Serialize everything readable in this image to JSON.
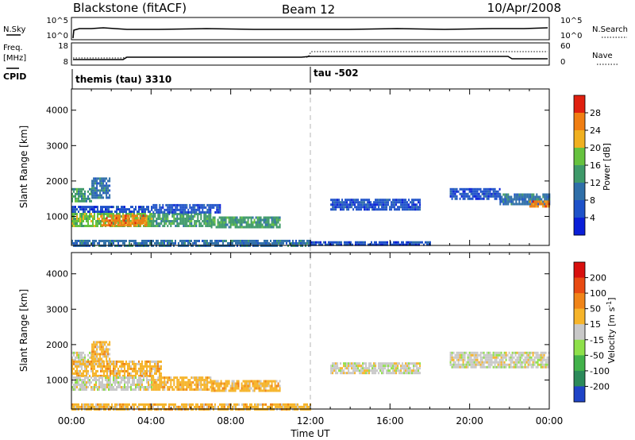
{
  "header": {
    "station": "Blackstone (fitACF)",
    "beam": "Beam 12",
    "date": "10/Apr/2008"
  },
  "panels": {
    "nsky": {
      "label": "N.Sky",
      "left_ticks": [
        "10^5",
        "10^0"
      ],
      "right_ticks": [
        "10^5",
        "10^0"
      ],
      "right_label": "N.Search"
    },
    "freq": {
      "label": "Freq.",
      "unit": "[MHz]",
      "left_ticks": [
        "18",
        "8"
      ],
      "right_ticks": [
        "60",
        "0"
      ],
      "right_label": "Nave"
    },
    "cpid": {
      "label": "CPID",
      "programs": [
        {
          "name": "themis (tau) 3310",
          "start_hour": 0
        },
        {
          "name": "tau -502",
          "start_hour": 12
        }
      ]
    }
  },
  "chart_data": [
    {
      "type": "heatmap",
      "name": "power",
      "ylabel": "Slant Range [km]",
      "ylim": [
        180,
        4600
      ],
      "yticks": [
        1000,
        2000,
        3000,
        4000
      ],
      "xlim": [
        0,
        24
      ],
      "colorbar": {
        "label": "Power [dB]",
        "ticks": [
          "28",
          "24",
          "20",
          "16",
          "12",
          "8",
          "4"
        ],
        "colors": [
          "#0a1fd8",
          "#1e52c9",
          "#2f6fa8",
          "#3f9a6a",
          "#66c23f",
          "#f0b020",
          "#f07e12",
          "#e0200f"
        ]
      },
      "regions": [
        {
          "t0": 0.0,
          "t1": 1.0,
          "r0": 1450,
          "r1": 1800,
          "level": 3
        },
        {
          "t0": 1.0,
          "t1": 1.9,
          "r0": 1550,
          "r1": 2100,
          "level": 2
        },
        {
          "t0": 0.0,
          "t1": 4.0,
          "r0": 1100,
          "r1": 1300,
          "level": 1
        },
        {
          "t0": 0.0,
          "t1": 4.0,
          "r0": 700,
          "r1": 1100,
          "level": 4
        },
        {
          "t0": 1.5,
          "t1": 3.8,
          "r0": 750,
          "r1": 1050,
          "level": 6
        },
        {
          "t0": 4.0,
          "t1": 7.0,
          "r0": 750,
          "r1": 1100,
          "level": 3
        },
        {
          "t0": 4.0,
          "t1": 7.5,
          "r0": 1100,
          "r1": 1350,
          "level": 1
        },
        {
          "t0": 7.0,
          "t1": 10.5,
          "r0": 720,
          "r1": 1000,
          "level": 3
        },
        {
          "t0": 0.0,
          "t1": 12.0,
          "r0": 200,
          "r1": 340,
          "level": 2
        },
        {
          "t0": 12.0,
          "t1": 18.0,
          "r0": 200,
          "r1": 300,
          "level": 1
        },
        {
          "t0": 13.0,
          "t1": 17.5,
          "r0": 1200,
          "r1": 1500,
          "level": 1
        },
        {
          "t0": 19.0,
          "t1": 21.5,
          "r0": 1500,
          "r1": 1800,
          "level": 1
        },
        {
          "t0": 21.5,
          "t1": 24.0,
          "r0": 1350,
          "r1": 1650,
          "level": 2
        },
        {
          "t0": 23.0,
          "t1": 24.0,
          "r0": 1300,
          "r1": 1450,
          "level": 6
        }
      ]
    },
    {
      "type": "heatmap",
      "name": "velocity",
      "ylabel": "Slant Range [km]",
      "xlabel": "Time UT",
      "ylim": [
        180,
        4600
      ],
      "yticks": [
        1000,
        2000,
        3000,
        4000
      ],
      "xlim": [
        0,
        24
      ],
      "xticks": [
        "00:00",
        "04:00",
        "08:00",
        "12:00",
        "16:00",
        "20:00",
        "00:00"
      ],
      "colorbar": {
        "label": "Velocity [m s^-1]",
        "ticks": [
          "200",
          "100",
          "50",
          "15",
          "-15",
          "-50",
          "-100",
          "-200"
        ],
        "colors": [
          "#1f44c7",
          "#2c8a5a",
          "#42b24a",
          "#8ee04a",
          "#c8c8c8",
          "#f6b42a",
          "#f08418",
          "#e84a12",
          "#d8100e"
        ]
      },
      "regions": [
        {
          "t0": 0.0,
          "t1": 1.0,
          "r0": 1450,
          "r1": 1800,
          "level": 4
        },
        {
          "t0": 1.0,
          "t1": 1.9,
          "r0": 1550,
          "r1": 2100,
          "level": 5
        },
        {
          "t0": 0.0,
          "t1": 4.5,
          "r0": 1100,
          "r1": 1550,
          "level": 5
        },
        {
          "t0": 0.0,
          "t1": 4.0,
          "r0": 700,
          "r1": 1100,
          "level": 4
        },
        {
          "t0": 4.0,
          "t1": 7.0,
          "r0": 750,
          "r1": 1100,
          "level": 5
        },
        {
          "t0": 7.0,
          "t1": 10.5,
          "r0": 720,
          "r1": 1000,
          "level": 5
        },
        {
          "t0": 0.0,
          "t1": 12.0,
          "r0": 200,
          "r1": 340,
          "level": 5
        },
        {
          "t0": 13.0,
          "t1": 17.5,
          "r0": 1200,
          "r1": 1500,
          "level": 4
        },
        {
          "t0": 19.0,
          "t1": 24.0,
          "r0": 1350,
          "r1": 1800,
          "level": 4
        }
      ]
    }
  ],
  "colors": {
    "axis": "#000000",
    "dashed_marker": "#b4b4b4"
  }
}
